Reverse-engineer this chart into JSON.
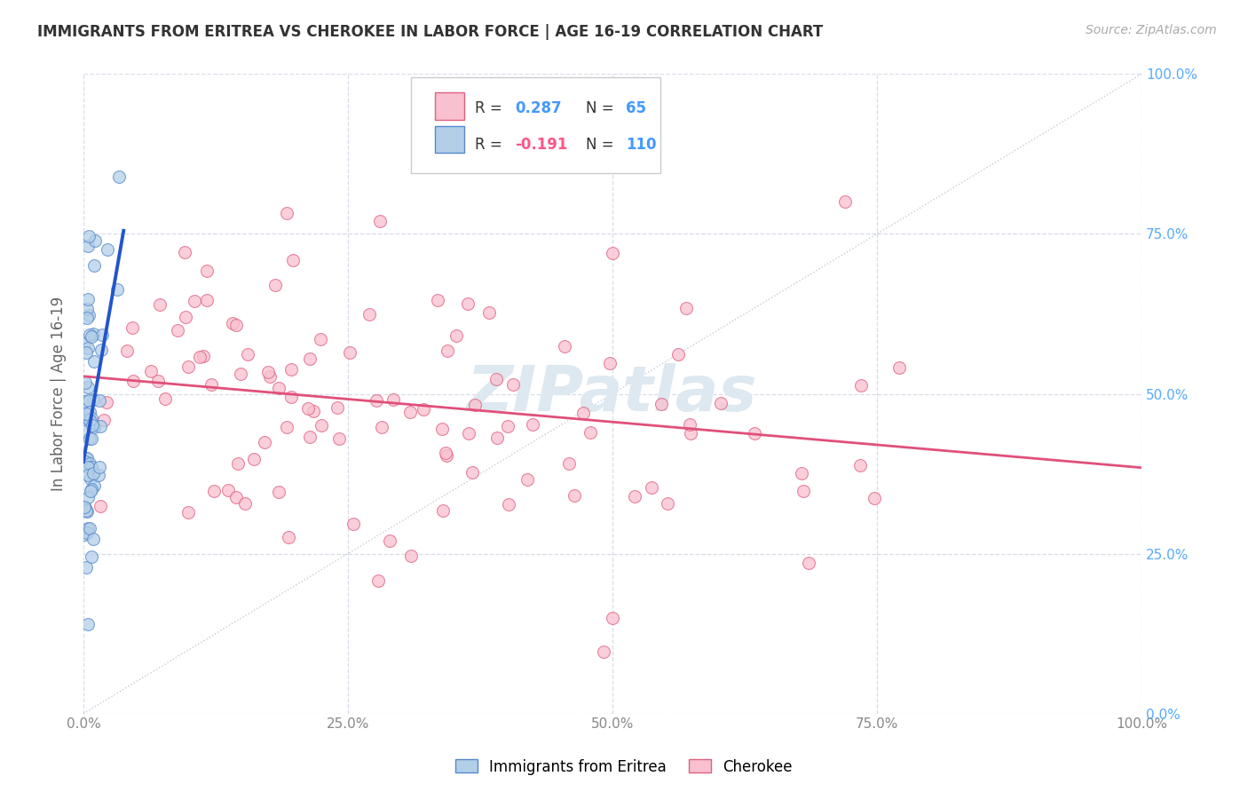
{
  "title": "IMMIGRANTS FROM ERITREA VS CHEROKEE IN LABOR FORCE | AGE 16-19 CORRELATION CHART",
  "source": "Source: ZipAtlas.com",
  "ylabel": "In Labor Force | Age 16-19",
  "xlim": [
    0,
    1.0
  ],
  "ylim": [
    0,
    1.0
  ],
  "xticks": [
    0.0,
    0.25,
    0.5,
    0.75,
    1.0
  ],
  "yticks": [
    0.0,
    0.25,
    0.5,
    0.75,
    1.0
  ],
  "xticklabels": [
    "0.0%",
    "25.0%",
    "50.0%",
    "75.0%",
    "100.0%"
  ],
  "yticklabels_right": [
    "0.0%",
    "25.0%",
    "50.0%",
    "75.0%",
    "100.0%"
  ],
  "series1_label": "Immigrants from Eritrea",
  "series1_color": "#b3cfe8",
  "series1_edge": "#5588cc",
  "series1_R": 0.287,
  "series1_N": 65,
  "series1_trendline_color": "#2255cc",
  "series2_label": "Cherokee",
  "series2_color": "#f9c0cf",
  "series2_edge": "#e06080",
  "series2_R": -0.191,
  "series2_N": 110,
  "series2_trendline_color": "#e0507a",
  "diagonal_color": "#99aabb",
  "background_color": "#ffffff",
  "grid_color": "#d8dce8",
  "title_color": "#333333",
  "source_color": "#aaaaaa",
  "legend_R_color1": "#4499ff",
  "legend_R_color2": "#ff5588",
  "legend_N_color": "#4499ff",
  "watermark": "ZIPatlas",
  "watermark_color": "#dde8f0"
}
